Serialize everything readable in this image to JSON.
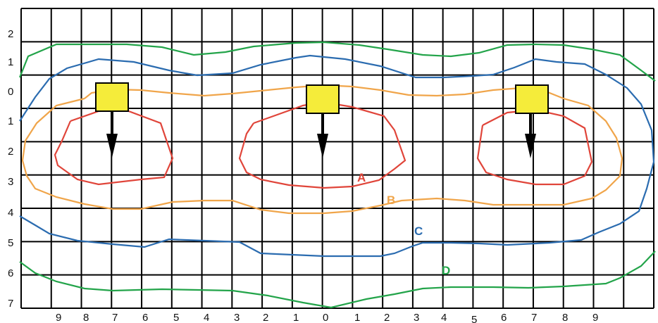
{
  "colors": {
    "background": "#ffffff",
    "grid": "#000000",
    "source_fill": "#f5ec3a",
    "source_stroke": "#000000",
    "arrow": "#000000"
  },
  "grid": {
    "columns": 21,
    "rows": 9
  },
  "row_labels": [
    "2",
    "1",
    "0",
    "1",
    "2",
    "3",
    "4",
    "5",
    "6",
    "7"
  ],
  "column_labels": [
    "9",
    "8",
    "7",
    "6",
    "5",
    "4",
    "3",
    "2",
    "1",
    "0",
    "1",
    "2",
    "3",
    "4",
    "5",
    "6",
    "7",
    "8",
    "9"
  ],
  "sources": [
    {
      "name": "source-left",
      "icon": "yellow-square-with-down-arrow"
    },
    {
      "name": "source-center",
      "icon": "yellow-square-with-down-arrow"
    },
    {
      "name": "source-right",
      "icon": "yellow-square-with-down-arrow"
    }
  ],
  "contours": [
    {
      "label": "A",
      "color": "#e0453a"
    },
    {
      "label": "B",
      "color": "#f0a54a"
    },
    {
      "label": "C",
      "color": "#2b6cb0"
    },
    {
      "label": "D",
      "color": "#23a44a"
    }
  ]
}
